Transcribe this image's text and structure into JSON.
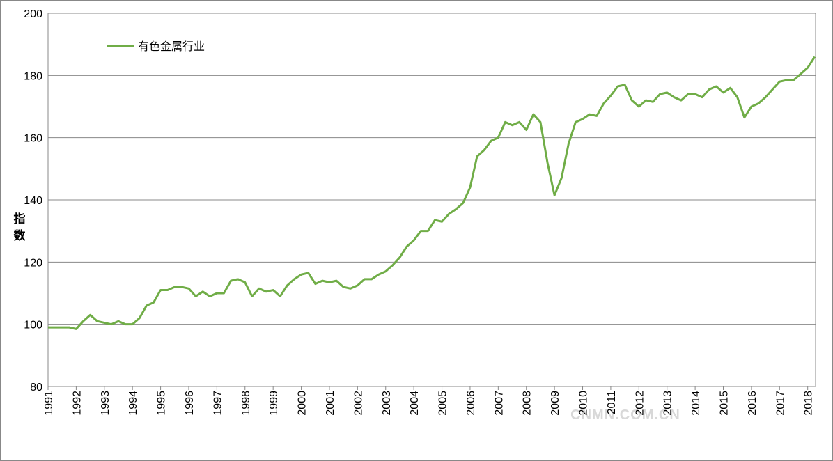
{
  "chart_data": {
    "type": "line",
    "y_label": "指数",
    "watermark": "CNMN.COM.CN",
    "legend": "top-left",
    "grid": true,
    "xlim": [
      1991,
      2018.28
    ],
    "ylim": [
      80,
      200
    ],
    "xticks": [
      1991,
      1992,
      1993,
      1994,
      1995,
      1996,
      1997,
      1998,
      1999,
      2000,
      2001,
      2002,
      2003,
      2004,
      2005,
      2006,
      2007,
      2008,
      2009,
      2010,
      2011,
      2012,
      2013,
      2014,
      2015,
      2016,
      2017,
      2018
    ],
    "yticks": [
      80,
      100,
      120,
      140,
      160,
      180,
      200
    ],
    "x": [
      1991,
      1991.25,
      1991.5,
      1991.75,
      1992,
      1992.25,
      1992.5,
      1992.75,
      1993,
      1993.25,
      1993.5,
      1993.75,
      1994,
      1994.25,
      1994.5,
      1994.75,
      1995,
      1995.25,
      1995.5,
      1995.75,
      1996,
      1996.25,
      1996.5,
      1996.75,
      1997,
      1997.25,
      1997.5,
      1997.75,
      1998,
      1998.25,
      1998.5,
      1998.75,
      1999,
      1999.25,
      1999.5,
      1999.75,
      2000,
      2000.25,
      2000.5,
      2000.75,
      2001,
      2001.25,
      2001.5,
      2001.75,
      2002,
      2002.25,
      2002.5,
      2002.75,
      2003,
      2003.25,
      2003.5,
      2003.75,
      2004,
      2004.25,
      2004.5,
      2004.75,
      2005,
      2005.25,
      2005.5,
      2005.75,
      2006,
      2006.25,
      2006.5,
      2006.75,
      2007,
      2007.25,
      2007.5,
      2007.75,
      2008,
      2008.25,
      2008.5,
      2008.75,
      2009,
      2009.25,
      2009.5,
      2009.75,
      2010,
      2010.25,
      2010.5,
      2010.75,
      2011,
      2011.25,
      2011.5,
      2011.75,
      2012,
      2012.25,
      2012.5,
      2012.75,
      2013,
      2013.25,
      2013.5,
      2013.75,
      2014,
      2014.25,
      2014.5,
      2014.75,
      2015,
      2015.25,
      2015.5,
      2015.75,
      2016,
      2016.25,
      2016.5,
      2016.75,
      2017,
      2017.25,
      2017.5,
      2017.75,
      2018,
      2018.25
    ],
    "series": [
      {
        "name": "有色金属行业",
        "color": "#70ad47",
        "values": [
          99,
          99,
          99,
          99,
          98.5,
          101,
          103,
          101,
          100.5,
          100,
          101,
          100,
          100,
          102,
          106,
          107,
          111,
          111,
          112,
          112,
          111.5,
          109,
          110.5,
          109,
          110,
          110,
          114,
          114.5,
          113.5,
          109,
          111.5,
          110.5,
          111,
          109,
          112.5,
          114.5,
          116,
          116.5,
          113,
          114,
          113.5,
          114,
          112,
          111.5,
          112.5,
          114.5,
          114.5,
          116,
          117,
          119,
          121.5,
          125,
          127,
          130,
          130,
          133.5,
          133,
          135.5,
          137,
          139,
          144,
          154,
          156,
          159,
          160,
          165,
          164,
          165,
          162.5,
          167.5,
          165,
          152,
          141.5,
          147,
          158,
          165,
          166,
          167.5,
          167,
          171,
          173.5,
          176.5,
          177,
          172,
          170,
          172,
          171.5,
          174,
          174.5,
          173,
          172,
          174,
          174,
          173,
          175.5,
          176.5,
          174.5,
          176,
          173,
          166.5,
          170,
          171,
          173,
          175.5,
          178,
          178.5,
          178.5,
          180.5,
          182.5,
          186
        ]
      }
    ]
  }
}
